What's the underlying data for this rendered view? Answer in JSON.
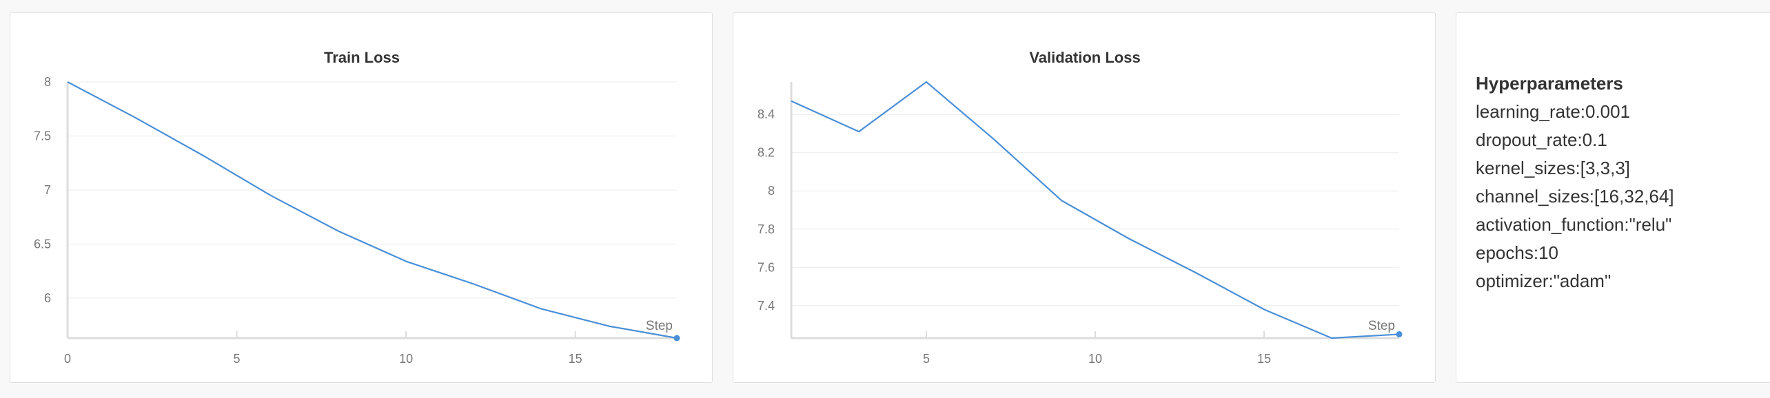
{
  "colors": {
    "line": "#4a8fd8",
    "axis": "#dcdcdc",
    "grid": "#ececec",
    "text": "#777777"
  },
  "chart_data": [
    {
      "id": "train",
      "type": "line",
      "title": "Train Loss",
      "step_label": "Step",
      "x": [
        0,
        2,
        4,
        6,
        8,
        10,
        12,
        14,
        16,
        18
      ],
      "y": [
        8.0,
        7.67,
        7.32,
        6.95,
        6.62,
        6.34,
        6.13,
        5.9,
        5.74,
        5.63
      ],
      "xlim": [
        0,
        18
      ],
      "ylim": [
        5.63,
        8.0
      ],
      "xticks": [
        0,
        5,
        10,
        15
      ],
      "yticks": [
        8,
        7.5,
        7,
        6.5,
        6
      ],
      "ytick_labels": [
        "8",
        "7.5",
        "7",
        "6.5",
        "6"
      ],
      "grid": true
    },
    {
      "id": "val",
      "type": "line",
      "title": "Validation Loss",
      "step_label": "Step",
      "x": [
        1,
        3,
        5,
        7,
        9,
        11,
        13,
        15,
        17,
        19
      ],
      "y": [
        8.47,
        8.31,
        8.57,
        8.27,
        7.95,
        7.75,
        7.57,
        7.38,
        7.23,
        7.25
      ],
      "xlim": [
        1,
        19
      ],
      "ylim": [
        7.23,
        8.57
      ],
      "xticks": [
        5,
        10,
        15
      ],
      "yticks": [
        8.4,
        8.2,
        8,
        7.8,
        7.6,
        7.4
      ],
      "ytick_labels": [
        "8.4",
        "8.2",
        "8",
        "7.8",
        "7.6",
        "7.4"
      ],
      "grid": true
    }
  ],
  "hyperparameters": {
    "title": "Hyperparameters",
    "items": [
      "learning_rate:0.001",
      "dropout_rate:0.1",
      "kernel_sizes:[3,3,3]",
      "channel_sizes:[16,32,64]",
      "activation_function:\"relu\"",
      "epochs:10",
      "optimizer:\"adam\""
    ]
  }
}
